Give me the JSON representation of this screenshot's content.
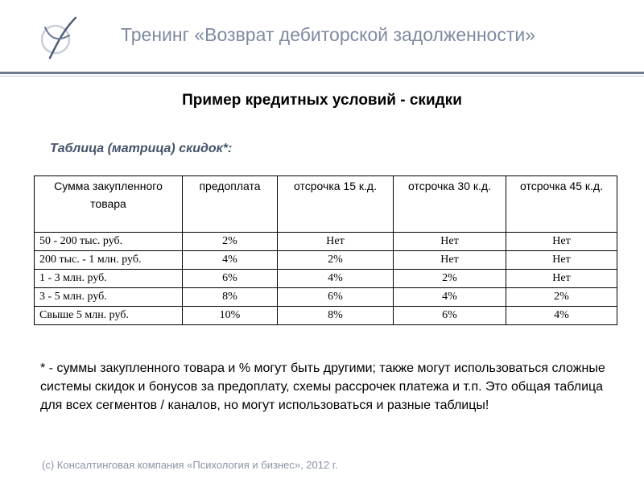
{
  "header": {
    "title": "Тренинг «Возврат дебиторской задолженности»",
    "logo_icon": "circle-monogram-logo-icon",
    "colors": {
      "title": "#7f8aa0",
      "rule": "#6e7b8e",
      "caption": "#44536a"
    }
  },
  "slide": {
    "title": "Пример кредитных условий - скидки",
    "table_caption": "Таблица (матрица) скидок*:"
  },
  "table": {
    "headers": [
      "Сумма закупленного товара",
      "предоплата",
      "отсрочка 15 к.д.",
      "отсрочка 30 к.д.",
      "отсрочка 45 к.д."
    ],
    "rows": [
      [
        "50 - 200 тыс. руб.",
        "2%",
        "Нет",
        "Нет",
        "Нет"
      ],
      [
        "200 тыс. - 1 млн. руб.",
        "4%",
        "2%",
        "Нет",
        "Нет"
      ],
      [
        "1 - 3 млн. руб.",
        "6%",
        "4%",
        "2%",
        "Нет"
      ],
      [
        "3 - 5 млн. руб.",
        "8%",
        "6%",
        "4%",
        "2%"
      ],
      [
        "Свыше 5 млн. руб.",
        "10%",
        "8%",
        "6%",
        "4%"
      ]
    ]
  },
  "footnote": "* - суммы закупленного товара и % могут быть другими; также могут использоваться сложные системы скидок и бонусов за предоплату, схемы рассрочек платежа и т.п. Это общая таблица для всех сегментов / каналов, но могут использоваться и разные таблицы!",
  "footer": {
    "copyright": "(с) Консалтинговая компания «Психология и бизнес», 2012 г."
  }
}
